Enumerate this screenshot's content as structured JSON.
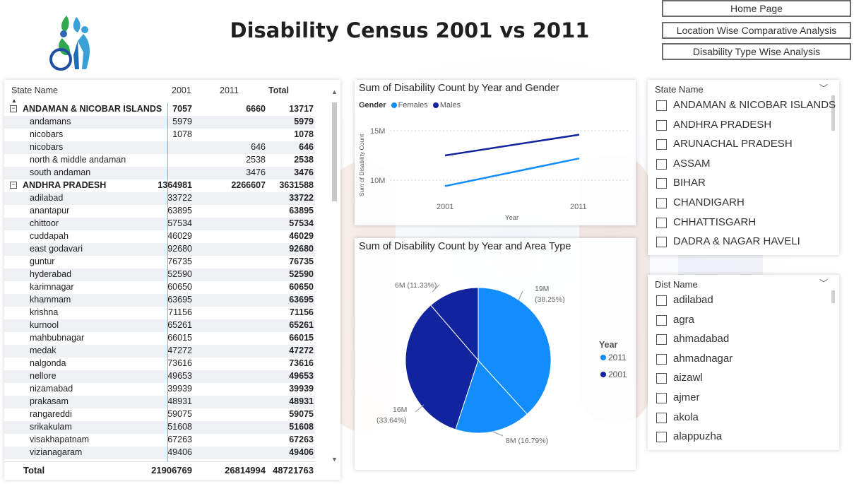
{
  "header": {
    "title": "Disability Census 2001 vs 2011"
  },
  "nav": {
    "home": "Home Page",
    "location": "Location Wise Comparative Analysis",
    "type": "Disability Type Wise Analysis"
  },
  "matrix": {
    "headers": {
      "name": "State Name",
      "y2001": "2001",
      "y2011": "2011",
      "total": "Total"
    },
    "rows": [
      {
        "name": "ANDAMAN & NICOBAR ISLANDS",
        "v2001": "7057",
        "v2011": "6660",
        "total": "13717",
        "group": true
      },
      {
        "name": "andamans",
        "v2001": "5979",
        "v2011": "",
        "total": "5979"
      },
      {
        "name": "nicobars",
        "v2001": "1078",
        "v2011": "",
        "total": "1078"
      },
      {
        "name": "nicobars",
        "v2001": "",
        "v2011": "646",
        "total": "646"
      },
      {
        "name": "north & middle andaman",
        "v2001": "",
        "v2011": "2538",
        "total": "2538"
      },
      {
        "name": "south andaman",
        "v2001": "",
        "v2011": "3476",
        "total": "3476"
      },
      {
        "name": "ANDHRA PRADESH",
        "v2001": "1364981",
        "v2011": "2266607",
        "total": "3631588",
        "group": true
      },
      {
        "name": "adilabad",
        "v2001": "33722",
        "v2011": "",
        "total": "33722"
      },
      {
        "name": "anantapur",
        "v2001": "63895",
        "v2011": "",
        "total": "63895"
      },
      {
        "name": "chittoor",
        "v2001": "57534",
        "v2011": "",
        "total": "57534"
      },
      {
        "name": "cuddapah",
        "v2001": "46029",
        "v2011": "",
        "total": "46029"
      },
      {
        "name": "east godavari",
        "v2001": "92680",
        "v2011": "",
        "total": "92680"
      },
      {
        "name": "guntur",
        "v2001": "76735",
        "v2011": "",
        "total": "76735"
      },
      {
        "name": "hyderabad",
        "v2001": "52590",
        "v2011": "",
        "total": "52590"
      },
      {
        "name": "karimnagar",
        "v2001": "60650",
        "v2011": "",
        "total": "60650"
      },
      {
        "name": "khammam",
        "v2001": "63695",
        "v2011": "",
        "total": "63695"
      },
      {
        "name": "krishna",
        "v2001": "71156",
        "v2011": "",
        "total": "71156"
      },
      {
        "name": "kurnool",
        "v2001": "65261",
        "v2011": "",
        "total": "65261"
      },
      {
        "name": "mahbubnagar",
        "v2001": "66015",
        "v2011": "",
        "total": "66015"
      },
      {
        "name": "medak",
        "v2001": "47272",
        "v2011": "",
        "total": "47272"
      },
      {
        "name": "nalgonda",
        "v2001": "73616",
        "v2011": "",
        "total": "73616"
      },
      {
        "name": "nellore",
        "v2001": "49653",
        "v2011": "",
        "total": "49653"
      },
      {
        "name": "nizamabad",
        "v2001": "39939",
        "v2011": "",
        "total": "39939"
      },
      {
        "name": "prakasam",
        "v2001": "48931",
        "v2011": "",
        "total": "48931"
      },
      {
        "name": "rangareddi",
        "v2001": "59075",
        "v2011": "",
        "total": "59075"
      },
      {
        "name": "srikakulam",
        "v2001": "51608",
        "v2011": "",
        "total": "51608"
      },
      {
        "name": "visakhapatnam",
        "v2001": "67263",
        "v2011": "",
        "total": "67263"
      },
      {
        "name": "vizianagaram",
        "v2001": "49406",
        "v2011": "",
        "total": "49406"
      }
    ],
    "total": {
      "label": "Total",
      "v2001": "21906769",
      "v2011": "26814994",
      "total": "48721763"
    }
  },
  "gender_chart": {
    "title": "Sum of Disability Count by Year and Gender",
    "legend_title": "Gender",
    "ytick_15": "15M",
    "ytick_10": "10M",
    "xtick_2001": "2001",
    "xtick_2011": "2011",
    "colors": {
      "Females": "#118dff",
      "Males": "#12239e"
    }
  },
  "area_chart": {
    "title": "Sum of Disability Count by Year and Area Type",
    "legend_title": "Year",
    "colors": {
      "2011": "#118dff",
      "2001": "#12239e"
    },
    "labels": {
      "s1_value": "19M",
      "s1_pct": "(38.25%)",
      "s2_text": "8M (16.79%)",
      "s3_value": "16M",
      "s3_pct": "(33.64%)",
      "s4_text": "6M (11.33%)"
    }
  },
  "chart_data": [
    {
      "type": "line",
      "title": "Sum of Disability Count by Year and Gender",
      "xlabel": "Year",
      "ylabel": "Sum of Disability Count",
      "x": [
        "2001",
        "2011"
      ],
      "series": [
        {
          "name": "Females",
          "values": [
            9400000,
            12200000
          ]
        },
        {
          "name": "Males",
          "values": [
            12500000,
            14600000
          ]
        }
      ],
      "ylim": [
        7000000,
        17000000
      ],
      "yticks": [
        "10M",
        "15M"
      ],
      "legend": "top-left"
    },
    {
      "type": "pie",
      "title": "Sum of Disability Count by Year and Area Type",
      "legend_title": "Year",
      "legend_entries": [
        "2011",
        "2001"
      ],
      "slices": [
        {
          "year": "2011",
          "label": "19M (38.25%)",
          "value": 38.25
        },
        {
          "year": "2011",
          "label": "8M (16.79%)",
          "value": 16.79
        },
        {
          "year": "2001",
          "label": "16M (33.64%)",
          "value": 33.64
        },
        {
          "year": "2001",
          "label": "6M (11.33%)",
          "value": 11.33
        }
      ],
      "legend": "right"
    }
  ],
  "state_slicer": {
    "title": "State Name",
    "items": [
      "ANDAMAN & NICOBAR ISLANDS",
      "ANDHRA PRADESH",
      "ARUNACHAL PRADESH",
      "ASSAM",
      "BIHAR",
      "CHANDIGARH",
      "CHHATTISGARH",
      "DADRA & NAGAR HAVELI"
    ]
  },
  "dist_slicer": {
    "title": "Dist Name",
    "items": [
      "adilabad",
      "agra",
      "ahmadabad",
      "ahmadnagar",
      "aizawl",
      "ajmer",
      "akola",
      "alappuzha"
    ]
  }
}
